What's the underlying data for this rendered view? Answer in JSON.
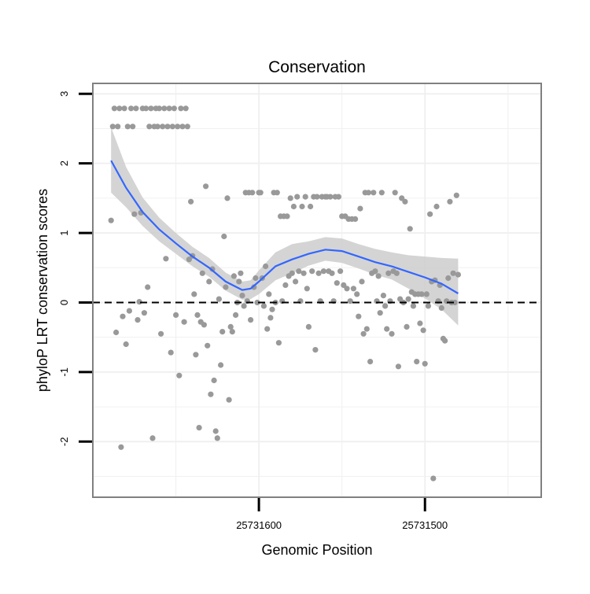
{
  "chart_data": {
    "type": "scatter",
    "title": "Conservation",
    "xlabel": "Genomic Position",
    "ylabel": "phyloP LRT conservation scores",
    "x_reversed": true,
    "xlim": [
      25731700,
      25731430
    ],
    "ylim": [
      -2.8,
      3.15
    ],
    "x_ticks": [
      25731600,
      25731500
    ],
    "x_tick_labels": [
      "25731600",
      "25731500"
    ],
    "y_ticks": [
      -2,
      -1,
      0,
      1,
      2,
      3
    ],
    "y_tick_labels": [
      "-2",
      "-1",
      "0",
      "1",
      "2",
      "3"
    ],
    "reference_line": {
      "y": 0,
      "style": "dashed"
    },
    "colors": {
      "points": "#999999",
      "smooth_line": "#3366ff",
      "confidence_band": "#cccccc",
      "panel_border": "#808080",
      "grid": "#f0f0f0",
      "ref_line": "#000000"
    },
    "points": [
      [
        25731689,
        1.18
      ],
      [
        25731688,
        2.53
      ],
      [
        25731687,
        2.79
      ],
      [
        25731686,
        -0.43
      ],
      [
        25731685,
        2.53
      ],
      [
        25731684,
        2.79
      ],
      [
        25731683,
        -2.08
      ],
      [
        25731682,
        -0.2
      ],
      [
        25731681,
        2.79
      ],
      [
        25731680,
        -0.6
      ],
      [
        25731679,
        2.53
      ],
      [
        25731678,
        -0.12
      ],
      [
        25731677,
        2.79
      ],
      [
        25731676,
        2.53
      ],
      [
        25731675,
        1.27
      ],
      [
        25731674,
        2.79
      ],
      [
        25731673,
        -0.25
      ],
      [
        25731672,
        0.01
      ],
      [
        25731671,
        1.29
      ],
      [
        25731670,
        2.79
      ],
      [
        25731669,
        -0.15
      ],
      [
        25731668,
        2.79
      ],
      [
        25731667,
        0.22
      ],
      [
        25731666,
        2.53
      ],
      [
        25731665,
        2.79
      ],
      [
        25731664,
        -1.95
      ],
      [
        25731663,
        2.53
      ],
      [
        25731662,
        2.79
      ],
      [
        25731661,
        2.53
      ],
      [
        25731660,
        2.79
      ],
      [
        25731659,
        -0.45
      ],
      [
        25731658,
        2.53
      ],
      [
        25731657,
        2.79
      ],
      [
        25731656,
        0.63
      ],
      [
        25731655,
        2.53
      ],
      [
        25731654,
        2.79
      ],
      [
        25731653,
        -0.72
      ],
      [
        25731652,
        2.53
      ],
      [
        25731651,
        2.79
      ],
      [
        25731650,
        -0.18
      ],
      [
        25731649,
        2.53
      ],
      [
        25731648,
        -1.05
      ],
      [
        25731647,
        2.79
      ],
      [
        25731646,
        2.53
      ],
      [
        25731645,
        -0.28
      ],
      [
        25731644,
        2.79
      ],
      [
        25731643,
        2.53
      ],
      [
        25731642,
        0.62
      ],
      [
        25731641,
        1.45
      ],
      [
        25731640,
        0.67
      ],
      [
        25731639,
        0.12
      ],
      [
        25731638,
        -0.75
      ],
      [
        25731637,
        -0.18
      ],
      [
        25731636,
        -1.8
      ],
      [
        25731635,
        -0.28
      ],
      [
        25731634,
        0.42
      ],
      [
        25731633,
        -0.32
      ],
      [
        25731632,
        1.67
      ],
      [
        25731631,
        -0.62
      ],
      [
        25731630,
        0.3
      ],
      [
        25731629,
        -1.32
      ],
      [
        25731628,
        0.48
      ],
      [
        25731627,
        -1.12
      ],
      [
        25731626,
        -1.85
      ],
      [
        25731625,
        -1.95
      ],
      [
        25731624,
        0.05
      ],
      [
        25731623,
        -0.9
      ],
      [
        25731622,
        -0.42
      ],
      [
        25731621,
        0.95
      ],
      [
        25731620,
        0.22
      ],
      [
        25731619,
        1.5
      ],
      [
        25731618,
        -1.4
      ],
      [
        25731617,
        -0.35
      ],
      [
        25731616,
        -0.42
      ],
      [
        25731615,
        0.38
      ],
      [
        25731614,
        -0.18
      ],
      [
        25731613,
        0.0
      ],
      [
        25731612,
        0.3
      ],
      [
        25731611,
        0.42
      ],
      [
        25731610,
        0.1
      ],
      [
        25731609,
        -0.05
      ],
      [
        25731608,
        1.58
      ],
      [
        25731607,
        0.02
      ],
      [
        25731606,
        1.58
      ],
      [
        25731605,
        -0.25
      ],
      [
        25731604,
        1.58
      ],
      [
        25731603,
        0.22
      ],
      [
        25731602,
        0.35
      ],
      [
        25731601,
        0.0
      ],
      [
        25731600,
        1.58
      ],
      [
        25731599,
        1.58
      ],
      [
        25731598,
        0.35
      ],
      [
        25731597,
        -0.05
      ],
      [
        25731596,
        0.52
      ],
      [
        25731595,
        -0.38
      ],
      [
        25731594,
        0.12
      ],
      [
        25731593,
        -0.22
      ],
      [
        25731592,
        -0.1
      ],
      [
        25731591,
        1.58
      ],
      [
        25731590,
        0.0
      ],
      [
        25731589,
        1.58
      ],
      [
        25731588,
        -0.58
      ],
      [
        25731587,
        1.24
      ],
      [
        25731586,
        0.02
      ],
      [
        25731585,
        1.24
      ],
      [
        25731584,
        0.25
      ],
      [
        25731583,
        1.24
      ],
      [
        25731582,
        0.38
      ],
      [
        25731581,
        1.5
      ],
      [
        25731580,
        0.42
      ],
      [
        25731579,
        1.38
      ],
      [
        25731578,
        0.3
      ],
      [
        25731577,
        1.52
      ],
      [
        25731576,
        0.45
      ],
      [
        25731575,
        0.02
      ],
      [
        25731574,
        1.38
      ],
      [
        25731573,
        0.42
      ],
      [
        25731572,
        1.52
      ],
      [
        25731571,
        0.2
      ],
      [
        25731570,
        -0.35
      ],
      [
        25731569,
        1.38
      ],
      [
        25731568,
        0.45
      ],
      [
        25731567,
        1.52
      ],
      [
        25731566,
        -0.68
      ],
      [
        25731565,
        1.52
      ],
      [
        25731564,
        0.42
      ],
      [
        25731563,
        0.02
      ],
      [
        25731562,
        1.52
      ],
      [
        25731561,
        0.45
      ],
      [
        25731560,
        1.52
      ],
      [
        25731559,
        1.52
      ],
      [
        25731558,
        0.45
      ],
      [
        25731557,
        1.52
      ],
      [
        25731556,
        0.42
      ],
      [
        25731555,
        0.02
      ],
      [
        25731554,
        1.52
      ],
      [
        25731553,
        0.28
      ],
      [
        25731552,
        1.52
      ],
      [
        25731551,
        0.45
      ],
      [
        25731550,
        1.24
      ],
      [
        25731549,
        0.25
      ],
      [
        25731548,
        1.24
      ],
      [
        25731547,
        0.2
      ],
      [
        25731546,
        1.2
      ],
      [
        25731545,
        0.02
      ],
      [
        25731544,
        1.2
      ],
      [
        25731543,
        0.2
      ],
      [
        25731542,
        1.2
      ],
      [
        25731541,
        0.12
      ],
      [
        25731540,
        -0.2
      ],
      [
        25731539,
        1.35
      ],
      [
        25731538,
        0.3
      ],
      [
        25731537,
        -0.45
      ],
      [
        25731536,
        1.58
      ],
      [
        25731535,
        -0.38
      ],
      [
        25731534,
        1.58
      ],
      [
        25731533,
        -0.85
      ],
      [
        25731532,
        0.42
      ],
      [
        25731531,
        1.58
      ],
      [
        25731530,
        0.45
      ],
      [
        25731529,
        0.02
      ],
      [
        25731528,
        0.38
      ],
      [
        25731527,
        -0.15
      ],
      [
        25731526,
        1.58
      ],
      [
        25731525,
        0.1
      ],
      [
        25731524,
        -0.05
      ],
      [
        25731523,
        -0.38
      ],
      [
        25731522,
        0.42
      ],
      [
        25731521,
        0.02
      ],
      [
        25731520,
        -0.45
      ],
      [
        25731519,
        0.45
      ],
      [
        25731518,
        1.58
      ],
      [
        25731517,
        0.42
      ],
      [
        25731516,
        -0.92
      ],
      [
        25731515,
        0.05
      ],
      [
        25731514,
        1.5
      ],
      [
        25731513,
        0.0
      ],
      [
        25731512,
        1.45
      ],
      [
        25731511,
        -0.35
      ],
      [
        25731510,
        0.05
      ],
      [
        25731509,
        1.06
      ],
      [
        25731508,
        0.15
      ],
      [
        25731507,
        -0.05
      ],
      [
        25731506,
        0.12
      ],
      [
        25731505,
        -0.85
      ],
      [
        25731504,
        0.12
      ],
      [
        25731503,
        -0.3
      ],
      [
        25731502,
        0.12
      ],
      [
        25731501,
        -0.4
      ],
      [
        25731500,
        -0.88
      ],
      [
        25731499,
        0.12
      ],
      [
        25731498,
        -0.05
      ],
      [
        25731497,
        1.27
      ],
      [
        25731496,
        0.3
      ],
      [
        25731495,
        -2.53
      ],
      [
        25731494,
        0.32
      ],
      [
        25731493,
        1.38
      ],
      [
        25731492,
        0.02
      ],
      [
        25731491,
        0.25
      ],
      [
        25731490,
        -0.08
      ],
      [
        25731489,
        -0.52
      ],
      [
        25731488,
        -0.55
      ],
      [
        25731487,
        0.02
      ],
      [
        25731486,
        0.35
      ],
      [
        25731485,
        1.45
      ],
      [
        25731484,
        0.0
      ],
      [
        25731483,
        0.42
      ],
      [
        25731482,
        0.0
      ],
      [
        25731481,
        1.54
      ],
      [
        25731480,
        0.4
      ]
    ],
    "smooth_x": [
      25731689,
      25731680,
      25731670,
      25731660,
      25731650,
      25731640,
      25731630,
      25731620,
      25731610,
      25731605,
      25731600,
      25731590,
      25731580,
      25731570,
      25731560,
      25731550,
      25731540,
      25731530,
      25731520,
      25731510,
      25731500,
      25731490,
      25731480
    ],
    "smooth_fit": [
      2.04,
      1.65,
      1.3,
      1.05,
      0.85,
      0.66,
      0.5,
      0.3,
      0.18,
      0.2,
      0.3,
      0.52,
      0.62,
      0.7,
      0.76,
      0.74,
      0.66,
      0.58,
      0.52,
      0.44,
      0.36,
      0.27,
      0.13
    ],
    "smooth_lower": [
      1.58,
      1.37,
      1.1,
      0.88,
      0.7,
      0.52,
      0.37,
      0.17,
      0.04,
      0.05,
      0.12,
      0.32,
      0.42,
      0.53,
      0.6,
      0.57,
      0.49,
      0.4,
      0.33,
      0.2,
      0.06,
      -0.1,
      -0.33
    ],
    "smooth_upper": [
      2.52,
      1.95,
      1.51,
      1.22,
      1.0,
      0.8,
      0.64,
      0.43,
      0.3,
      0.32,
      0.46,
      0.72,
      0.84,
      0.88,
      0.94,
      0.92,
      0.84,
      0.77,
      0.72,
      0.68,
      0.66,
      0.64,
      0.63
    ]
  }
}
